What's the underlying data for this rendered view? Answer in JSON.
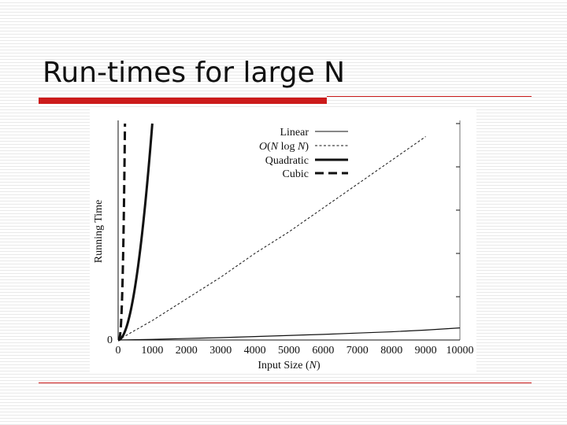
{
  "slide": {
    "title": "Run-times for large N"
  },
  "chart_data": {
    "type": "line",
    "xlabel": "Input Size (N)",
    "ylabel": "Running Time",
    "xlim": [
      0,
      10000
    ],
    "x_ticks": [
      "0",
      "1000",
      "2000",
      "3000",
      "4000",
      "5000",
      "6000",
      "7000",
      "8000",
      "9000",
      "10000"
    ],
    "y_ticks": [
      "0"
    ],
    "ylim": [
      0,
      1
    ],
    "grid": false,
    "legend_position": "top-right",
    "series": [
      {
        "name": "Linear",
        "style": "thin-solid",
        "x": [
          0,
          1000,
          2000,
          3000,
          4000,
          5000,
          6000,
          7000,
          8000,
          9000,
          10000
        ],
        "y": [
          0,
          0.003,
          0.007,
          0.011,
          0.016,
          0.021,
          0.026,
          0.032,
          0.038,
          0.046,
          0.056
        ]
      },
      {
        "name": "O(N log N)",
        "style": "thin-dashed",
        "x": [
          0,
          1000,
          2000,
          3000,
          4000,
          5000,
          6000,
          7000,
          8000,
          9000
        ],
        "y": [
          0,
          0.09,
          0.19,
          0.29,
          0.4,
          0.5,
          0.61,
          0.72,
          0.83,
          0.94
        ]
      },
      {
        "name": "Quadratic",
        "style": "thick-solid",
        "x": [
          0,
          100,
          200,
          300,
          400,
          500,
          600,
          700,
          800,
          900,
          1000
        ],
        "y": [
          0,
          0.01,
          0.04,
          0.09,
          0.16,
          0.25,
          0.36,
          0.49,
          0.64,
          0.81,
          1.0
        ]
      },
      {
        "name": "Cubic",
        "style": "thick-dashed",
        "x": [
          0,
          30,
          60,
          90,
          120,
          150,
          180,
          200
        ],
        "y": [
          0,
          0.003,
          0.027,
          0.091,
          0.216,
          0.422,
          0.729,
          1.0
        ]
      }
    ],
    "legend_labels": {
      "linear": "Linear",
      "nlogn_o": "O",
      "nlogn_open": "(",
      "nlogn_n1": "N",
      "nlogn_log": " log ",
      "nlogn_n2": "N",
      "nlogn_close": ")",
      "quadratic": "Quadratic",
      "cubic": "Cubic"
    },
    "xlabel_parts": {
      "prefix": "Input Size (",
      "var": "N",
      "suffix": ")"
    }
  }
}
